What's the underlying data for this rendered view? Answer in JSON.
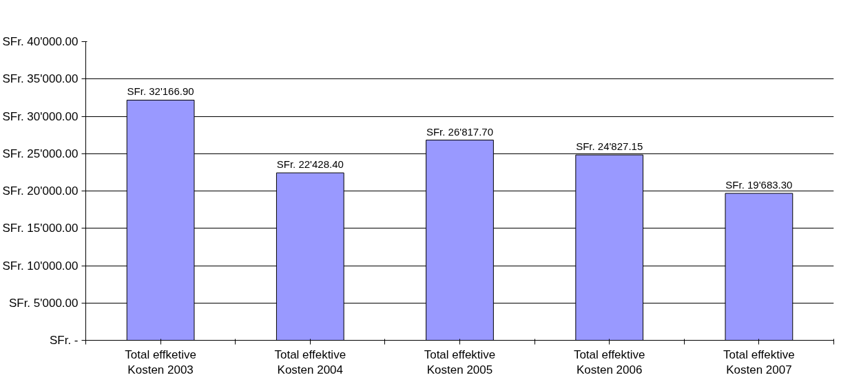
{
  "chart_data": {
    "type": "bar",
    "categories": [
      "Total effketive\nKosten 2003",
      "Total effektive\nKosten 2004",
      "Total effektive\nKosten 2005",
      "Total effektive\nKosten 2006",
      "Total effektive\nKosten 2007"
    ],
    "values": [
      32166.9,
      22428.4,
      26817.7,
      24827.15,
      19683.3
    ],
    "value_labels": [
      "SFr. 32'166.90",
      "SFr. 22'428.40",
      "SFr. 26'817.70",
      "SFr. 24'827.15",
      "SFr. 19'683.30"
    ],
    "color": "#9999ff",
    "ylim": [
      0,
      40000
    ],
    "yticks": [
      {
        "value": 0,
        "label": "SFr. -"
      },
      {
        "value": 5000,
        "label": "SFr. 5'000.00"
      },
      {
        "value": 10000,
        "label": "SFr. 10'000.00"
      },
      {
        "value": 15000,
        "label": "SFr. 15'000.00"
      },
      {
        "value": 20000,
        "label": "SFr. 20'000.00"
      },
      {
        "value": 25000,
        "label": "SFr. 25'000.00"
      },
      {
        "value": 30000,
        "label": "SFr. 30'000.00"
      },
      {
        "value": 35000,
        "label": "SFr. 35'000.00"
      },
      {
        "value": 40000,
        "label": "SFr. 40'000.00"
      }
    ],
    "grid": "y"
  }
}
